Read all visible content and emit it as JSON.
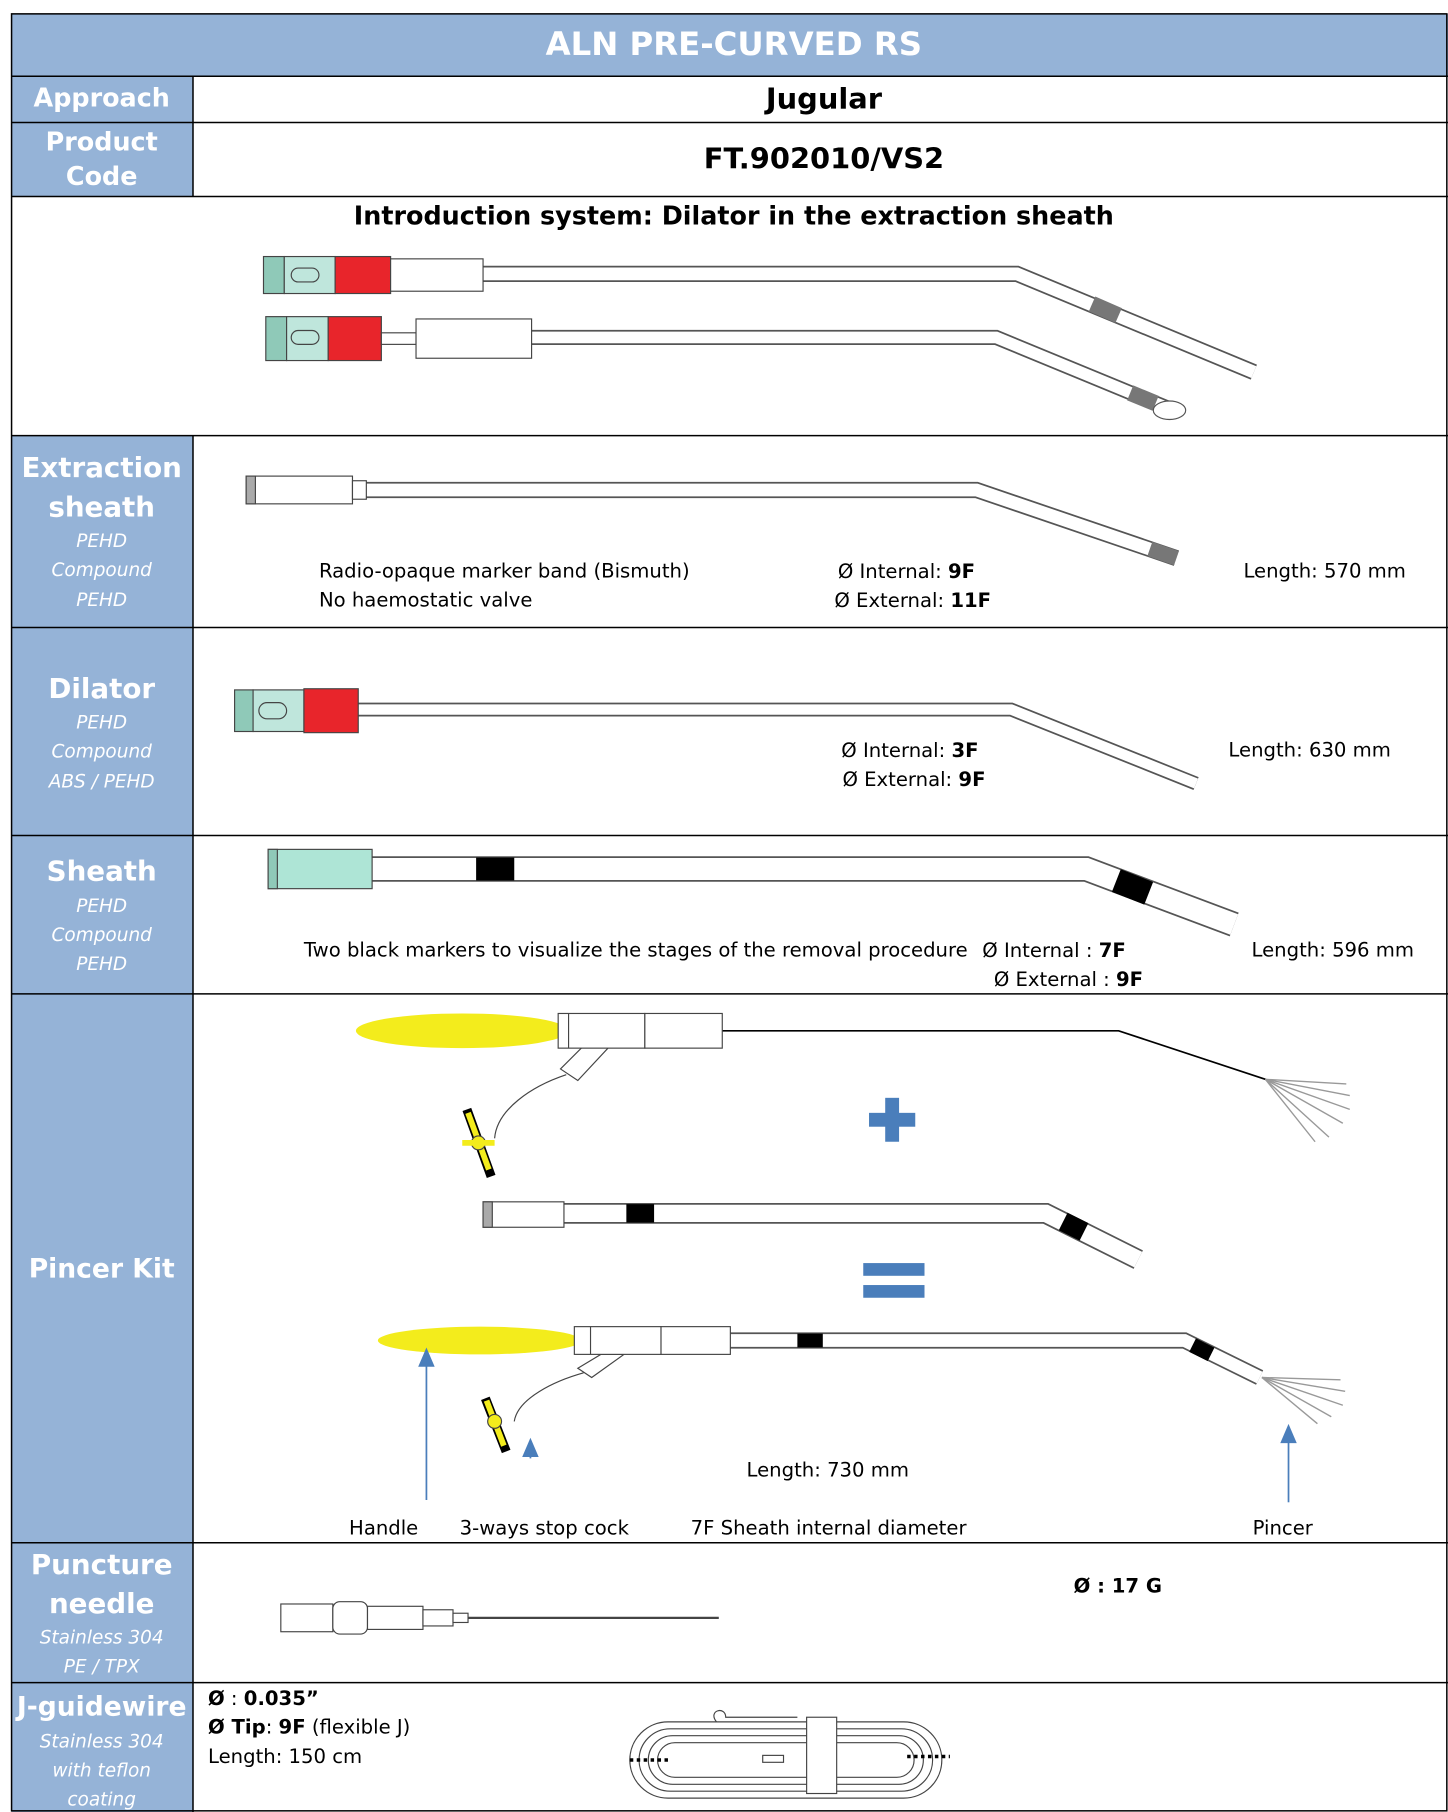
{
  "header": {
    "title": "ALN PRE-CURVED RS"
  },
  "approach": {
    "label": "Approach",
    "value": "Jugular"
  },
  "product_code": {
    "label_lines": [
      "Product",
      "Code"
    ],
    "value": "FT.902010/VS2"
  },
  "introduction": {
    "title": "Introduction system: Dilator in the extraction sheath"
  },
  "extraction_sheath": {
    "name_lines": [
      "Extraction",
      "sheath"
    ],
    "materials": [
      "PEHD",
      "Compound",
      "PEHD"
    ],
    "notes": [
      "Radio-opaque marker band (Bismuth)",
      "No haemostatic valve"
    ],
    "internal": [
      "Ø Internal: ",
      "9F"
    ],
    "external": [
      "Ø External: ",
      "11F"
    ],
    "length": "Length: 570 mm"
  },
  "dilator": {
    "name": "Dilator",
    "materials": [
      "PEHD",
      "Compound",
      "ABS / PEHD"
    ],
    "internal": [
      "Ø Internal: ",
      "3F"
    ],
    "external": [
      "Ø External: ",
      "9F"
    ],
    "length": "Length: 630 mm"
  },
  "sheath": {
    "name": "Sheath",
    "materials": [
      "PEHD",
      "Compound",
      "PEHD"
    ],
    "note": "Two black markers to visualize the stages of the removal procedure",
    "internal": [
      "Ø Internal : ",
      "7F"
    ],
    "external": [
      "Ø External : ",
      "9F"
    ],
    "length": "Length: 596 mm"
  },
  "pincer_kit": {
    "name": "Pincer Kit",
    "length": "Length: 730 mm",
    "callouts": [
      "Handle",
      "3-ways stop cock",
      "7F Sheath internal diameter",
      "Pincer"
    ]
  },
  "puncture_needle": {
    "name_lines": [
      "Puncture",
      "needle"
    ],
    "materials": [
      "Stainless 304",
      "PE / TPX"
    ],
    "diameter": [
      "Ø : ",
      "17 G"
    ]
  },
  "j_guidewire": {
    "name": "J-guidewire",
    "materials": [
      "Stainless 304",
      "with teflon",
      "coating"
    ],
    "diameter": [
      "Ø",
      " : ",
      "0.035”"
    ],
    "tip": [
      "Ø Tip",
      ": ",
      "9F",
      " (flexible J)"
    ],
    "length": "Length: 150 cm"
  }
}
